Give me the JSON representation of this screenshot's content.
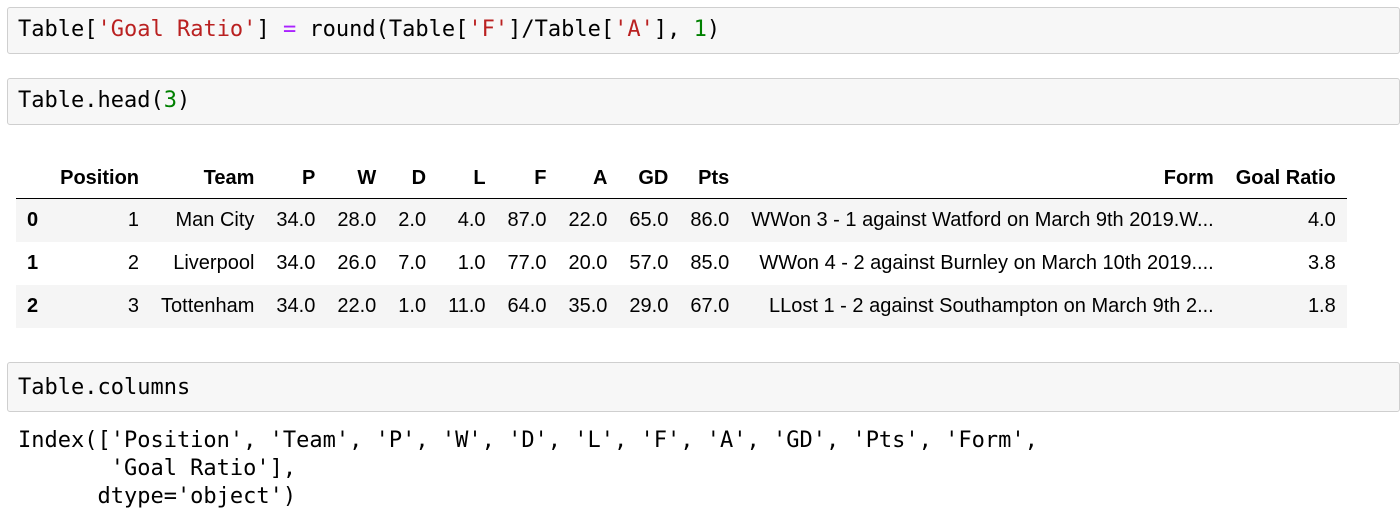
{
  "cells": {
    "cell1": {
      "code_prefix": "Table[",
      "str1": "'Goal Ratio'",
      "mid1": "] ",
      "op": "=",
      "mid2": " round(Table[",
      "str2": "'F'",
      "mid3": "]/Table[",
      "str3": "'A'",
      "mid4": "], ",
      "num": "1",
      "end": ")"
    },
    "cell2": {
      "code_prefix": "Table.head(",
      "num": "3",
      "end": ")"
    },
    "cell3": {
      "code": "Table.columns"
    }
  },
  "table": {
    "columns": [
      "Position",
      "Team",
      "P",
      "W",
      "D",
      "L",
      "F",
      "A",
      "GD",
      "Pts",
      "Form",
      "Goal Ratio"
    ],
    "rows": [
      {
        "index": "0",
        "values": [
          "1",
          "Man City",
          "34.0",
          "28.0",
          "2.0",
          "4.0",
          "87.0",
          "22.0",
          "65.0",
          "86.0",
          "WWon 3 - 1 against Watford on March 9th 2019.W...",
          "4.0"
        ]
      },
      {
        "index": "1",
        "values": [
          "2",
          "Liverpool",
          "34.0",
          "26.0",
          "7.0",
          "1.0",
          "77.0",
          "20.0",
          "57.0",
          "85.0",
          "WWon 4 - 2 against Burnley on March 10th 2019....",
          "3.8"
        ]
      },
      {
        "index": "2",
        "values": [
          "3",
          "Tottenham",
          "34.0",
          "22.0",
          "1.0",
          "11.0",
          "64.0",
          "35.0",
          "29.0",
          "67.0",
          "LLost 1 - 2 against Southampton on March 9th 2...",
          "1.8"
        ]
      }
    ]
  },
  "output": {
    "line1": "Index(['Position', 'Team', 'P', 'W', 'D', 'L', 'F', 'A', 'GD', 'Pts', 'Form',",
    "line2": "       'Goal Ratio'],",
    "line3": "      dtype='object')"
  }
}
